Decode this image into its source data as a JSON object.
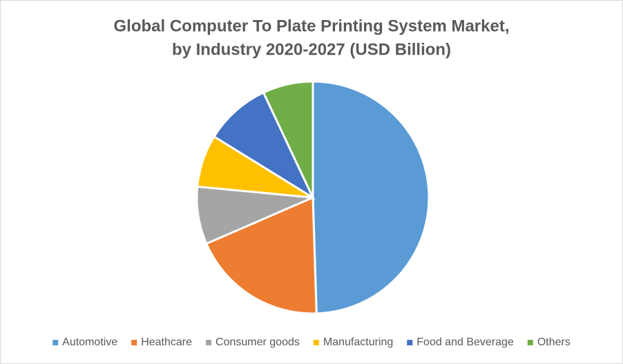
{
  "chart_data": {
    "type": "pie",
    "title": "Global Computer To Plate Printing System Market,",
    "subtitle": "by Industry 2020-2027 (USD Billion)",
    "categories": [
      "Automotive",
      "Heathcare",
      "Consumer goods",
      "Manufacturing",
      "Food and Beverage",
      "Others"
    ],
    "values": [
      49.5,
      19,
      8,
      7.3,
      9.2,
      7
    ],
    "colors": [
      "#5b9bd5",
      "#ed7d31",
      "#a5a5a5",
      "#ffc000",
      "#4472c4",
      "#70ad47"
    ],
    "legend": "bottom"
  }
}
